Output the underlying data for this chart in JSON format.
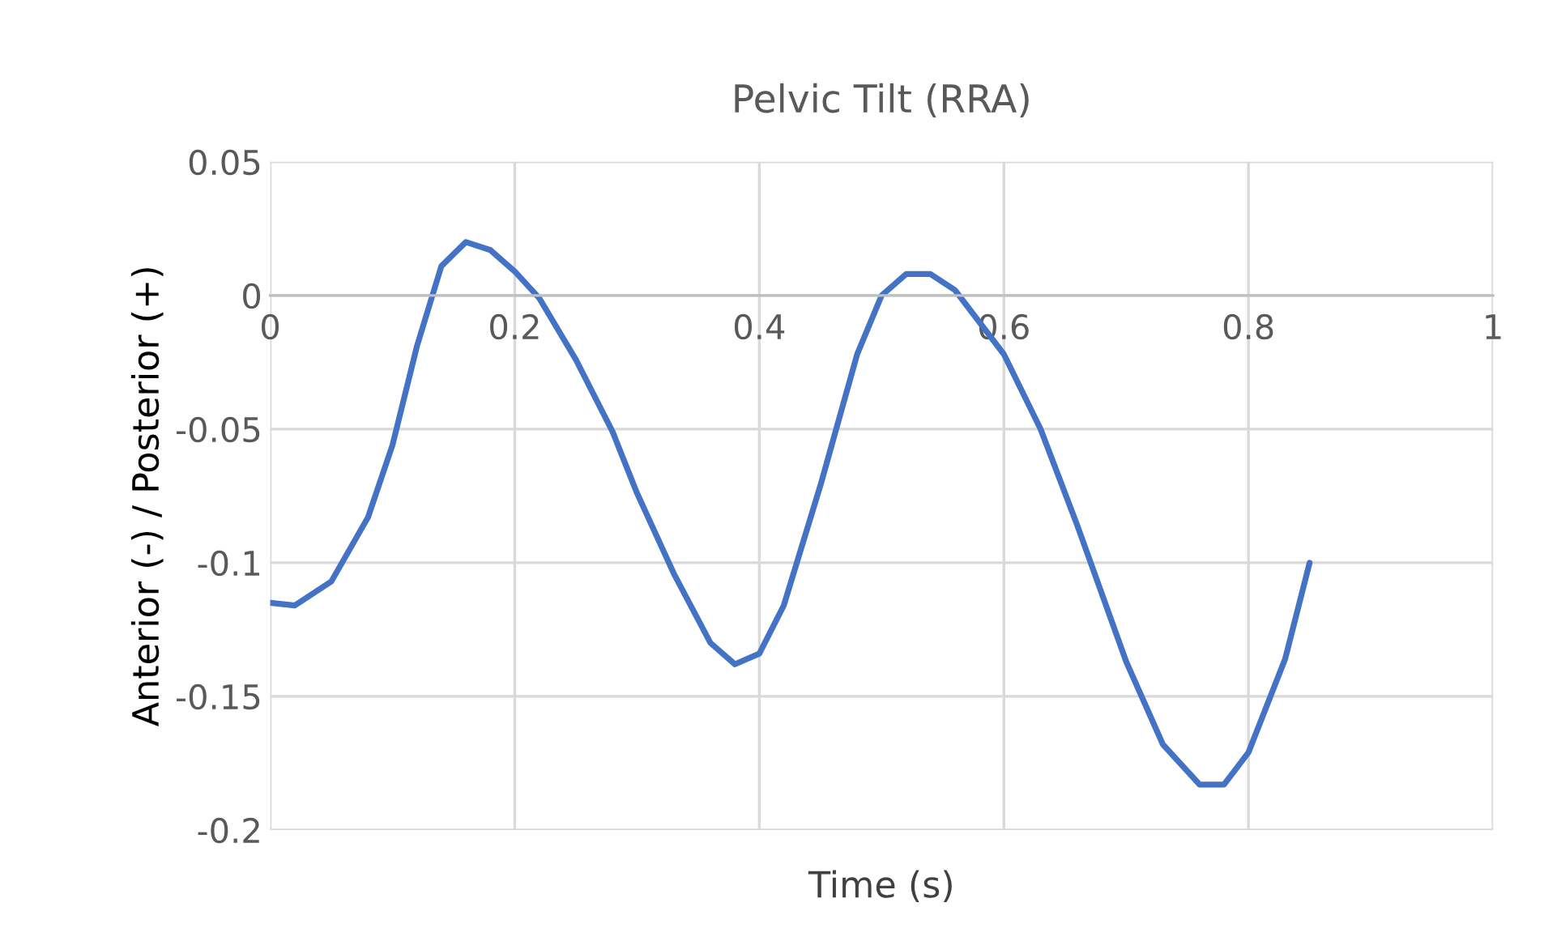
{
  "chart_data": {
    "type": "line",
    "title": "Pelvic Tilt (RRA)",
    "xlabel": "Time (s)",
    "ylabel": "Anterior (-) / Posterior (+)",
    "xlim": [
      0,
      1
    ],
    "xticks": [
      0,
      0.2,
      0.4,
      0.6,
      0.8,
      1
    ],
    "ylim": [
      -0.2,
      0.05
    ],
    "yticks": [
      -0.2,
      -0.15,
      -0.1,
      -0.05,
      0,
      0.05
    ],
    "grid": true,
    "marker": "none",
    "line_style": "solid",
    "series": [
      {
        "color": "#4472c4",
        "x": [
          0,
          0.02,
          0.05,
          0.08,
          0.1,
          0.12,
          0.14,
          0.16,
          0.18,
          0.2,
          0.22,
          0.25,
          0.28,
          0.3,
          0.33,
          0.36,
          0.38,
          0.4,
          0.42,
          0.45,
          0.48,
          0.5,
          0.52,
          0.54,
          0.56,
          0.6,
          0.63,
          0.66,
          0.7,
          0.73,
          0.76,
          0.78,
          0.8,
          0.83,
          0.85
        ],
        "values": [
          -0.115,
          -0.116,
          -0.107,
          -0.083,
          -0.056,
          -0.019,
          0.011,
          0.02,
          0.017,
          0.009,
          -0.001,
          -0.024,
          -0.051,
          -0.074,
          -0.104,
          -0.13,
          -0.138,
          -0.134,
          -0.116,
          -0.071,
          -0.022,
          0,
          0.008,
          0.008,
          0.002,
          -0.022,
          -0.05,
          -0.086,
          -0.137,
          -0.168,
          -0.183,
          -0.183,
          -0.171,
          -0.136,
          -0.1
        ]
      }
    ]
  }
}
